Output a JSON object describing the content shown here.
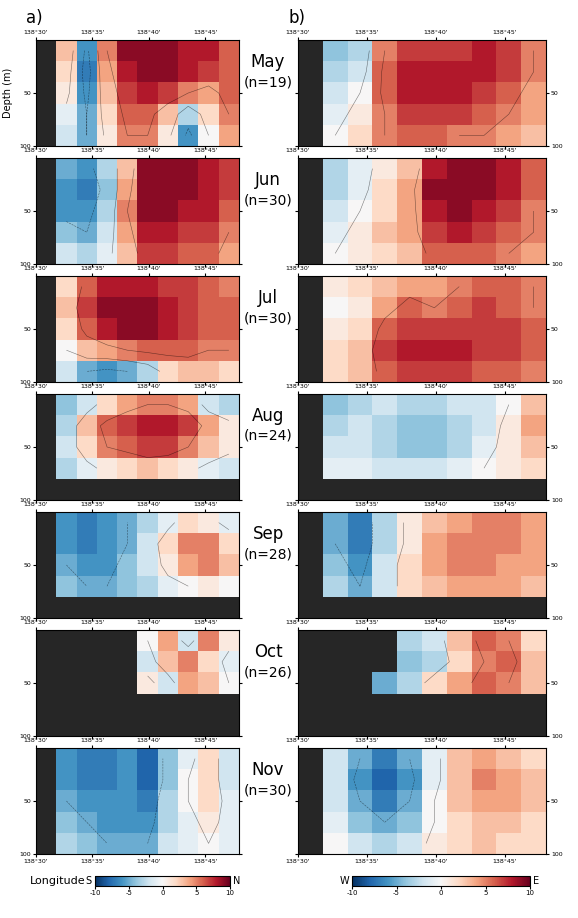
{
  "chart_data": [
    {
      "type": "heatmap",
      "title": "a)",
      "x": [
        138.515,
        138.545,
        138.575,
        138.605,
        138.635,
        138.665,
        138.695,
        138.725,
        138.755,
        138.785
      ],
      "y": [
        10,
        30,
        50,
        70,
        90
      ],
      "xlim": [
        138.5,
        138.8
      ],
      "ylim": [
        100,
        0
      ],
      "xticks": [
        {
          "value": 138.5,
          "label": "138°30'"
        },
        {
          "value": 138.58333,
          "label": "138°35'"
        },
        {
          "value": 138.66667,
          "label": "138°40'"
        },
        {
          "value": 138.75,
          "label": "138°45'"
        }
      ],
      "yticks": [
        50,
        100
      ],
      "colorbar": {
        "range": [
          -10,
          10
        ],
        "ticks": [
          -10,
          -5,
          0,
          5,
          10
        ],
        "ends": [
          "S",
          "N"
        ]
      },
      "panels": [
        {
          "cells": [
            [
              null,
              3,
              -6,
              5,
              9,
              9,
              9,
              8,
              8,
              6
            ],
            [
              null,
              2,
              -7,
              4,
              8,
              9,
              9,
              8,
              7,
              6
            ],
            [
              null,
              1,
              -6,
              3,
              7,
              8,
              7,
              5,
              4,
              6
            ],
            [
              null,
              -1,
              -5,
              2,
              6,
              6,
              3,
              -3,
              2,
              5
            ],
            [
              null,
              -2,
              -5,
              1,
              5,
              5,
              1,
              -6,
              0,
              4
            ]
          ]
        },
        {
          "cells": [
            [
              null,
              -5,
              -6,
              -3,
              3,
              9,
              9,
              9,
              8,
              7
            ],
            [
              null,
              -6,
              -7,
              -4,
              4,
              9,
              9,
              9,
              8,
              7
            ],
            [
              null,
              -6,
              -6,
              -3,
              5,
              9,
              9,
              8,
              8,
              6
            ],
            [
              null,
              -4,
              -5,
              -2,
              4,
              8,
              8,
              7,
              7,
              5
            ],
            [
              null,
              -2,
              -3,
              -1,
              3,
              7,
              7,
              6,
              6,
              4
            ]
          ]
        },
        {
          "cells": [
            [
              null,
              2,
              6,
              8,
              8,
              8,
              7,
              7,
              6,
              5
            ],
            [
              null,
              3,
              7,
              9,
              9,
              9,
              8,
              7,
              6,
              6
            ],
            [
              null,
              2,
              6,
              8,
              9,
              9,
              8,
              7,
              6,
              6
            ],
            [
              null,
              0,
              3,
              4,
              5,
              6,
              6,
              6,
              5,
              5
            ],
            [
              null,
              -2,
              -5,
              -6,
              -5,
              -3,
              2,
              3,
              3,
              2
            ]
          ]
        },
        {
          "cells": [
            [
              null,
              -4,
              -2,
              2,
              4,
              5,
              5,
              4,
              -2,
              -3
            ],
            [
              null,
              -3,
              3,
              6,
              7,
              8,
              8,
              7,
              4,
              1
            ],
            [
              null,
              -2,
              2,
              5,
              6,
              7,
              7,
              5,
              3,
              1
            ],
            [
              null,
              -3,
              -1,
              1,
              2,
              3,
              2,
              1,
              -1,
              -2
            ],
            [
              null,
              null,
              null,
              null,
              null,
              null,
              null,
              null,
              null,
              null
            ]
          ]
        },
        {
          "cells": [
            [
              null,
              -6,
              -7,
              -6,
              -5,
              -3,
              -1,
              2,
              1,
              -1
            ],
            [
              null,
              -6,
              -7,
              -6,
              -5,
              -2,
              2,
              5,
              5,
              2
            ],
            [
              null,
              -5,
              -6,
              -6,
              -4,
              -2,
              1,
              4,
              5,
              3
            ],
            [
              null,
              -4,
              -5,
              -5,
              -4,
              -3,
              -1,
              0,
              1,
              0
            ],
            [
              null,
              null,
              null,
              null,
              null,
              null,
              null,
              null,
              null,
              null
            ]
          ]
        },
        {
          "cells": [
            [
              null,
              null,
              null,
              null,
              null,
              0,
              4,
              -2,
              5,
              1
            ],
            [
              null,
              null,
              null,
              null,
              null,
              -2,
              3,
              5,
              2,
              -1
            ],
            [
              null,
              null,
              null,
              null,
              null,
              1,
              -2,
              4,
              3,
              0
            ],
            [
              null,
              null,
              null,
              null,
              null,
              null,
              null,
              null,
              null,
              null
            ],
            [
              null,
              null,
              null,
              null,
              null,
              null,
              null,
              null,
              null,
              null
            ]
          ]
        },
        {
          "cells": [
            [
              null,
              -6,
              -7,
              -7,
              -6,
              -8,
              -4,
              -1,
              2,
              -2
            ],
            [
              null,
              -6,
              -7,
              -7,
              -6,
              -8,
              -4,
              0,
              2,
              -2
            ],
            [
              null,
              -5,
              -6,
              -6,
              -6,
              -7,
              -3,
              0,
              2,
              -1
            ],
            [
              null,
              -4,
              -5,
              -6,
              -6,
              -6,
              -3,
              -1,
              1,
              -1
            ],
            [
              null,
              -3,
              -4,
              -5,
              -5,
              -5,
              -2,
              -1,
              0,
              -1
            ]
          ]
        }
      ]
    },
    {
      "type": "heatmap",
      "title": "b)",
      "x": [
        138.515,
        138.545,
        138.575,
        138.605,
        138.635,
        138.665,
        138.695,
        138.725,
        138.755,
        138.785
      ],
      "y": [
        10,
        30,
        50,
        70,
        90
      ],
      "xlim": [
        138.5,
        138.8
      ],
      "ylim": [
        100,
        0
      ],
      "xticks": [
        {
          "value": 138.5,
          "label": "138°30'"
        },
        {
          "value": 138.58333,
          "label": "138°35'"
        },
        {
          "value": 138.66667,
          "label": "138°40'"
        },
        {
          "value": 138.75,
          "label": "138°45'"
        }
      ],
      "yticks": [
        50,
        100
      ],
      "colorbar": {
        "range": [
          -10,
          10
        ],
        "ticks": [
          -10,
          -5,
          0,
          5,
          10
        ],
        "ends": [
          "W",
          "E"
        ]
      },
      "panels": [
        {
          "cells": [
            [
              null,
              -4,
              -3,
              5,
              7,
              7,
              7,
              8,
              7,
              5
            ],
            [
              null,
              -3,
              -2,
              6,
              8,
              8,
              8,
              8,
              7,
              5
            ],
            [
              null,
              -2,
              0,
              6,
              8,
              8,
              8,
              7,
              6,
              4
            ],
            [
              null,
              -1,
              1,
              5,
              7,
              7,
              7,
              6,
              5,
              4
            ],
            [
              null,
              0,
              2,
              5,
              6,
              6,
              5,
              5,
              4,
              3
            ]
          ]
        },
        {
          "cells": [
            [
              null,
              -3,
              -1,
              1,
              3,
              8,
              9,
              9,
              8,
              6
            ],
            [
              null,
              -3,
              -1,
              2,
              4,
              9,
              9,
              9,
              8,
              6
            ],
            [
              null,
              -2,
              0,
              2,
              4,
              8,
              9,
              8,
              7,
              5
            ],
            [
              null,
              -1,
              1,
              3,
              4,
              7,
              8,
              7,
              6,
              5
            ],
            [
              null,
              0,
              1,
              2,
              3,
              6,
              6,
              6,
              5,
              4
            ]
          ]
        },
        {
          "cells": [
            [
              null,
              1,
              2,
              3,
              4,
              4,
              5,
              6,
              6,
              5
            ],
            [
              null,
              0,
              1,
              4,
              6,
              5,
              6,
              7,
              6,
              5
            ],
            [
              null,
              1,
              2,
              6,
              7,
              7,
              7,
              7,
              7,
              6
            ],
            [
              null,
              2,
              3,
              7,
              8,
              8,
              8,
              7,
              7,
              6
            ],
            [
              null,
              2,
              3,
              6,
              7,
              7,
              7,
              6,
              6,
              5
            ]
          ]
        },
        {
          "cells": [
            [
              null,
              -4,
              -3,
              -2,
              -3,
              -3,
              -2,
              -2,
              0,
              3
            ],
            [
              null,
              -3,
              -2,
              -3,
              -4,
              -4,
              -3,
              -2,
              1,
              4
            ],
            [
              null,
              -2,
              -2,
              -3,
              -4,
              -4,
              -3,
              -1,
              1,
              3
            ],
            [
              null,
              -1,
              -1,
              -2,
              -2,
              -2,
              -1,
              0,
              1,
              2
            ],
            [
              null,
              null,
              null,
              null,
              null,
              null,
              null,
              null,
              null,
              null
            ]
          ]
        },
        {
          "cells": [
            [
              null,
              -5,
              -7,
              -3,
              1,
              3,
              4,
              5,
              5,
              4
            ],
            [
              null,
              -5,
              -7,
              -3,
              1,
              4,
              5,
              5,
              5,
              4
            ],
            [
              null,
              -4,
              -6,
              -2,
              2,
              4,
              5,
              5,
              4,
              4
            ],
            [
              null,
              -3,
              -5,
              -2,
              2,
              3,
              4,
              4,
              4,
              3
            ],
            [
              null,
              null,
              null,
              null,
              null,
              null,
              null,
              null,
              null,
              null
            ]
          ]
        },
        {
          "cells": [
            [
              null,
              null,
              null,
              null,
              -3,
              -2,
              3,
              6,
              5,
              2
            ],
            [
              null,
              null,
              null,
              null,
              -4,
              -3,
              2,
              5,
              6,
              3
            ],
            [
              null,
              null,
              null,
              -5,
              -3,
              2,
              4,
              6,
              5,
              3
            ],
            [
              null,
              null,
              null,
              null,
              null,
              null,
              null,
              null,
              null,
              null
            ],
            [
              null,
              null,
              null,
              null,
              null,
              null,
              null,
              null,
              null,
              null
            ]
          ]
        },
        {
          "cells": [
            [
              null,
              -2,
              -5,
              -7,
              -5,
              -1,
              3,
              4,
              3,
              2
            ],
            [
              null,
              -2,
              -6,
              -8,
              -6,
              -1,
              3,
              5,
              4,
              3
            ],
            [
              null,
              -2,
              -5,
              -7,
              -5,
              0,
              3,
              4,
              4,
              3
            ],
            [
              null,
              -1,
              -4,
              -5,
              -4,
              0,
              2,
              3,
              3,
              2
            ],
            [
              null,
              0,
              -2,
              -3,
              -2,
              1,
              2,
              3,
              2,
              2
            ]
          ]
        }
      ]
    }
  ],
  "rows": [
    {
      "label": "May",
      "n": "(n=19)"
    },
    {
      "label": "Jun",
      "n": "(n=30)"
    },
    {
      "label": "Jul",
      "n": "(n=30)"
    },
    {
      "label": "Aug",
      "n": "(n=24)"
    },
    {
      "label": "Sep",
      "n": "(n=28)"
    },
    {
      "label": "Oct",
      "n": "(n=26)"
    },
    {
      "label": "Nov",
      "n": "(n=30)"
    }
  ],
  "ylabel": "Depth (m)",
  "xlabel": "Longitude"
}
